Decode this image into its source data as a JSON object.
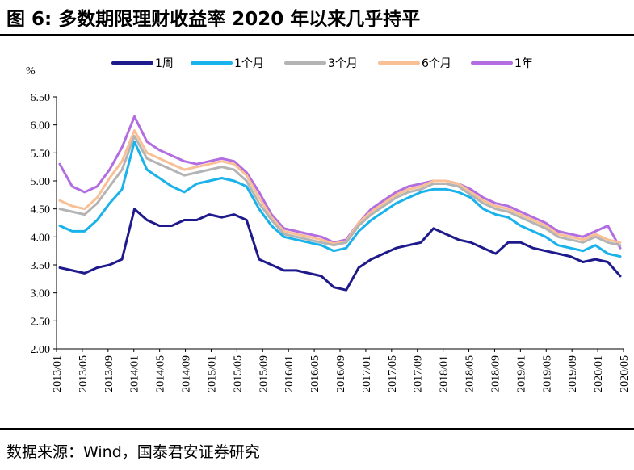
{
  "title": "图 6: 多数期限理财收益率 2020 年以来几乎持平",
  "source": "数据来源：Wind，国泰君安证券研究",
  "chart_data": {
    "type": "line",
    "ylabel": "%",
    "ylim": [
      2.0,
      6.5
    ],
    "yticks": [
      "2.00",
      "2.50",
      "3.00",
      "3.50",
      "4.00",
      "4.50",
      "5.00",
      "5.50",
      "6.00",
      "6.50"
    ],
    "x_tick_labels": [
      "2013/01",
      "2013/05",
      "2013/09",
      "2014/01",
      "2014/05",
      "2014/09",
      "2015/01",
      "2015/05",
      "2015/09",
      "2016/01",
      "2016/05",
      "2016/09",
      "2017/01",
      "2017/05",
      "2017/09",
      "2018/01",
      "2018/05",
      "2018/09",
      "2019/01",
      "2019/05",
      "2019/09",
      "2020/01",
      "2020/05"
    ],
    "x": [
      "2013/01",
      "2013/03",
      "2013/05",
      "2013/07",
      "2013/09",
      "2013/11",
      "2014/01",
      "2014/03",
      "2014/05",
      "2014/07",
      "2014/09",
      "2014/11",
      "2015/01",
      "2015/03",
      "2015/05",
      "2015/07",
      "2015/09",
      "2015/11",
      "2016/01",
      "2016/03",
      "2016/05",
      "2016/07",
      "2016/09",
      "2016/11",
      "2017/01",
      "2017/03",
      "2017/05",
      "2017/07",
      "2017/09",
      "2017/11",
      "2018/01",
      "2018/03",
      "2018/05",
      "2018/07",
      "2018/09",
      "2018/11",
      "2019/01",
      "2019/03",
      "2019/05",
      "2019/07",
      "2019/09",
      "2019/11",
      "2020/01",
      "2020/03",
      "2020/05",
      "2020/06"
    ],
    "series": [
      {
        "name": "1周",
        "color": "#1f1a8c",
        "width": 3,
        "values": [
          3.45,
          3.4,
          3.35,
          3.45,
          3.5,
          3.6,
          4.5,
          4.3,
          4.2,
          4.2,
          4.3,
          4.3,
          4.4,
          4.35,
          4.4,
          4.3,
          3.6,
          3.5,
          3.4,
          3.4,
          3.35,
          3.3,
          3.1,
          3.05,
          3.45,
          3.6,
          3.7,
          3.8,
          3.85,
          3.9,
          4.15,
          4.05,
          3.95,
          3.9,
          3.8,
          3.7,
          3.9,
          3.9,
          3.8,
          3.75,
          3.7,
          3.65,
          3.55,
          3.6,
          3.55,
          3.3
        ]
      },
      {
        "name": "1个月",
        "color": "#1ab2ea",
        "width": 3,
        "values": [
          4.2,
          4.1,
          4.1,
          4.3,
          4.6,
          4.85,
          5.7,
          5.2,
          5.05,
          4.9,
          4.8,
          4.95,
          5.0,
          5.05,
          5.0,
          4.9,
          4.5,
          4.2,
          4.0,
          3.95,
          3.9,
          3.85,
          3.75,
          3.8,
          4.1,
          4.3,
          4.45,
          4.6,
          4.7,
          4.8,
          4.85,
          4.85,
          4.8,
          4.7,
          4.5,
          4.4,
          4.35,
          4.2,
          4.1,
          4.0,
          3.85,
          3.8,
          3.75,
          3.85,
          3.7,
          3.65
        ]
      },
      {
        "name": "3个月",
        "color": "#b4b4b4",
        "width": 3,
        "values": [
          4.5,
          4.45,
          4.4,
          4.6,
          4.9,
          5.2,
          5.8,
          5.4,
          5.3,
          5.2,
          5.1,
          5.15,
          5.2,
          5.25,
          5.2,
          5.0,
          4.6,
          4.3,
          4.05,
          4.0,
          3.95,
          3.9,
          3.85,
          3.9,
          4.2,
          4.4,
          4.55,
          4.7,
          4.8,
          4.85,
          4.95,
          4.95,
          4.9,
          4.75,
          4.6,
          4.5,
          4.45,
          4.35,
          4.25,
          4.15,
          4.0,
          3.95,
          3.9,
          4.0,
          3.9,
          3.85
        ]
      },
      {
        "name": "6个月",
        "color": "#f9bf95",
        "width": 3,
        "values": [
          4.65,
          4.55,
          4.5,
          4.7,
          5.05,
          5.35,
          5.9,
          5.5,
          5.4,
          5.3,
          5.2,
          5.25,
          5.3,
          5.35,
          5.3,
          5.1,
          4.7,
          4.35,
          4.1,
          4.05,
          4.0,
          3.95,
          3.88,
          3.92,
          4.25,
          4.45,
          4.6,
          4.75,
          4.85,
          4.9,
          5.0,
          5.0,
          4.95,
          4.8,
          4.65,
          4.55,
          4.5,
          4.4,
          4.3,
          4.2,
          4.05,
          4.0,
          3.95,
          4.05,
          3.95,
          3.9
        ]
      },
      {
        "name": "1年",
        "color": "#b26ee0",
        "width": 3,
        "values": [
          5.3,
          4.9,
          4.8,
          4.9,
          5.2,
          5.6,
          6.15,
          5.7,
          5.55,
          5.45,
          5.35,
          5.3,
          5.35,
          5.4,
          5.35,
          5.15,
          4.8,
          4.4,
          4.15,
          4.1,
          4.05,
          4.0,
          3.9,
          3.95,
          4.25,
          4.5,
          4.65,
          4.8,
          4.9,
          4.95,
          5.0,
          5.0,
          4.95,
          4.85,
          4.7,
          4.6,
          4.55,
          4.45,
          4.35,
          4.25,
          4.1,
          4.05,
          4.0,
          4.1,
          4.2,
          3.8
        ]
      }
    ],
    "legend_position": "top",
    "grid": false
  }
}
